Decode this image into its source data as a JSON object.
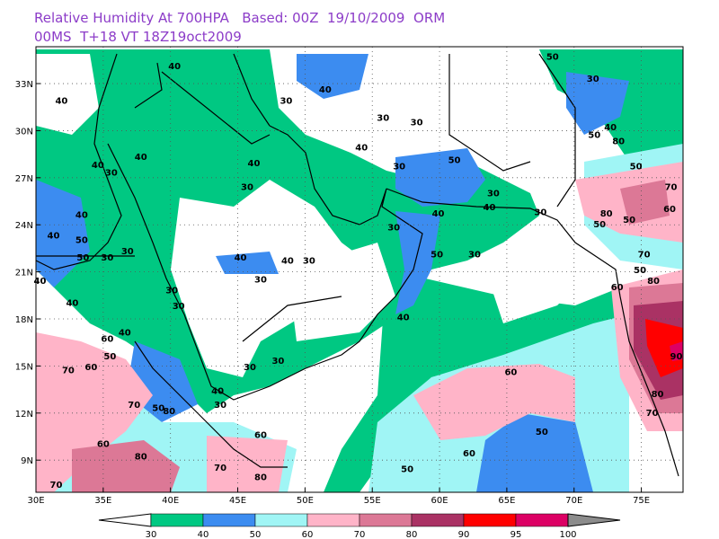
{
  "header": {
    "line1": "Relative Humidity At 700HPA   Based: 00Z  19/10/2009  ORM",
    "line2": "00MS  T+18 VT 18Z19oct2009"
  },
  "map": {
    "lon_range": [
      30,
      78.1
    ],
    "lat_range": [
      6.95,
      35.35
    ],
    "lon_ticks": [
      {
        "value": 30,
        "label": "30E"
      },
      {
        "value": 35,
        "label": "35E"
      },
      {
        "value": 40,
        "label": "40E"
      },
      {
        "value": 45,
        "label": "45E"
      },
      {
        "value": 50,
        "label": "50E"
      },
      {
        "value": 55,
        "label": "55E"
      },
      {
        "value": 60,
        "label": "60E"
      },
      {
        "value": 65,
        "label": "65E"
      },
      {
        "value": 70,
        "label": "70E"
      },
      {
        "value": 75,
        "label": "75E"
      }
    ],
    "lat_ticks": [
      {
        "value": 9,
        "label": "9N"
      },
      {
        "value": 12,
        "label": "12N"
      },
      {
        "value": 15,
        "label": "15N"
      },
      {
        "value": 18,
        "label": "18N"
      },
      {
        "value": 21,
        "label": "21N"
      },
      {
        "value": 24,
        "label": "24N"
      },
      {
        "value": 27,
        "label": "27N"
      },
      {
        "value": 30,
        "label": "30N"
      },
      {
        "value": 33,
        "label": "33N"
      }
    ],
    "grid": true,
    "contour_labels": [
      {
        "value": 40,
        "lon": 40.3,
        "lat": 34.1
      },
      {
        "value": 40,
        "lon": 31.9,
        "lat": 31.9
      },
      {
        "value": 30,
        "lon": 48.6,
        "lat": 31.9
      },
      {
        "value": 40,
        "lon": 51.5,
        "lat": 32.6
      },
      {
        "value": 30,
        "lon": 55.8,
        "lat": 30.8
      },
      {
        "value": 30,
        "lon": 58.3,
        "lat": 30.5
      },
      {
        "value": 50,
        "lon": 68.4,
        "lat": 34.7
      },
      {
        "value": 30,
        "lon": 71.4,
        "lat": 33.3
      },
      {
        "value": 40,
        "lon": 72.7,
        "lat": 30.2
      },
      {
        "value": 50,
        "lon": 71.5,
        "lat": 29.7
      },
      {
        "value": 80,
        "lon": 73.3,
        "lat": 29.3
      },
      {
        "value": 50,
        "lon": 74.6,
        "lat": 27.7
      },
      {
        "value": 40,
        "lon": 54.2,
        "lat": 28.9
      },
      {
        "value": 30,
        "lon": 57.0,
        "lat": 27.7
      },
      {
        "value": 50,
        "lon": 61.1,
        "lat": 28.1
      },
      {
        "value": 40,
        "lon": 37.8,
        "lat": 28.3
      },
      {
        "value": 40,
        "lon": 46.2,
        "lat": 27.9
      },
      {
        "value": 30,
        "lon": 45.7,
        "lat": 26.4
      },
      {
        "value": 40,
        "lon": 34.6,
        "lat": 27.8
      },
      {
        "value": 30,
        "lon": 35.6,
        "lat": 27.3
      },
      {
        "value": 30,
        "lon": 64.0,
        "lat": 26.0
      },
      {
        "value": 40,
        "lon": 63.7,
        "lat": 25.1
      },
      {
        "value": 40,
        "lon": 59.9,
        "lat": 24.7
      },
      {
        "value": 30,
        "lon": 67.5,
        "lat": 24.8
      },
      {
        "value": 70,
        "lon": 77.2,
        "lat": 26.4
      },
      {
        "value": 60,
        "lon": 77.1,
        "lat": 25.0
      },
      {
        "value": 50,
        "lon": 74.1,
        "lat": 24.3
      },
      {
        "value": 80,
        "lon": 72.4,
        "lat": 24.7
      },
      {
        "value": 50,
        "lon": 71.9,
        "lat": 24.0
      },
      {
        "value": 40,
        "lon": 33.4,
        "lat": 24.6
      },
      {
        "value": 40,
        "lon": 31.3,
        "lat": 23.3
      },
      {
        "value": 50,
        "lon": 33.4,
        "lat": 23.0
      },
      {
        "value": 50,
        "lon": 33.5,
        "lat": 21.9
      },
      {
        "value": 30,
        "lon": 35.3,
        "lat": 21.9
      },
      {
        "value": 30,
        "lon": 36.8,
        "lat": 22.3
      },
      {
        "value": 30,
        "lon": 56.6,
        "lat": 23.8
      },
      {
        "value": 50,
        "lon": 59.8,
        "lat": 22.1
      },
      {
        "value": 30,
        "lon": 62.6,
        "lat": 22.1
      },
      {
        "value": 40,
        "lon": 45.2,
        "lat": 21.9
      },
      {
        "value": 40,
        "lon": 48.7,
        "lat": 21.7
      },
      {
        "value": 30,
        "lon": 50.3,
        "lat": 21.7
      },
      {
        "value": 30,
        "lon": 46.7,
        "lat": 20.5
      },
      {
        "value": 30,
        "lon": 40.1,
        "lat": 19.8
      },
      {
        "value": 30,
        "lon": 40.6,
        "lat": 18.8
      },
      {
        "value": 70,
        "lon": 75.2,
        "lat": 22.1
      },
      {
        "value": 50,
        "lon": 74.9,
        "lat": 21.1
      },
      {
        "value": 80,
        "lon": 75.9,
        "lat": 20.4
      },
      {
        "value": 60,
        "lon": 73.2,
        "lat": 20.0
      },
      {
        "value": 40,
        "lon": 30.3,
        "lat": 20.4
      },
      {
        "value": 40,
        "lon": 32.7,
        "lat": 19.0
      },
      {
        "value": 40,
        "lon": 57.3,
        "lat": 18.1
      },
      {
        "value": 60,
        "lon": 35.3,
        "lat": 16.7
      },
      {
        "value": 40,
        "lon": 36.6,
        "lat": 17.1
      },
      {
        "value": 50,
        "lon": 35.5,
        "lat": 15.6
      },
      {
        "value": 60,
        "lon": 34.1,
        "lat": 14.9
      },
      {
        "value": 70,
        "lon": 32.4,
        "lat": 14.7
      },
      {
        "value": 30,
        "lon": 45.9,
        "lat": 14.9
      },
      {
        "value": 30,
        "lon": 48.0,
        "lat": 15.3
      },
      {
        "value": 90,
        "lon": 77.6,
        "lat": 15.6
      },
      {
        "value": 60,
        "lon": 65.3,
        "lat": 14.6
      },
      {
        "value": 40,
        "lon": 43.5,
        "lat": 13.4
      },
      {
        "value": 30,
        "lon": 43.7,
        "lat": 12.5
      },
      {
        "value": 70,
        "lon": 37.3,
        "lat": 12.5
      },
      {
        "value": 50,
        "lon": 39.1,
        "lat": 12.3
      },
      {
        "value": 80,
        "lon": 39.9,
        "lat": 12.1
      },
      {
        "value": 80,
        "lon": 76.2,
        "lat": 13.2
      },
      {
        "value": 70,
        "lon": 75.8,
        "lat": 12.0
      },
      {
        "value": 50,
        "lon": 67.6,
        "lat": 10.8
      },
      {
        "value": 60,
        "lon": 46.7,
        "lat": 10.6
      },
      {
        "value": 60,
        "lon": 35.0,
        "lat": 10.0
      },
      {
        "value": 60,
        "lon": 62.2,
        "lat": 9.4
      },
      {
        "value": 80,
        "lon": 37.8,
        "lat": 9.2
      },
      {
        "value": 70,
        "lon": 43.7,
        "lat": 8.5
      },
      {
        "value": 80,
        "lon": 46.7,
        "lat": 7.9
      },
      {
        "value": 50,
        "lon": 57.6,
        "lat": 8.4
      },
      {
        "value": 70,
        "lon": 31.5,
        "lat": 7.4
      }
    ],
    "colorbar": {
      "levels": [
        30,
        40,
        50,
        60,
        70,
        80,
        90,
        95,
        100
      ],
      "colors": [
        "#ffffff",
        "#00c882",
        "#3c8cf0",
        "#a0f5f5",
        "#ffb4c8",
        "#dc7896",
        "#aa3264",
        "#ff0000",
        "#dc0064",
        "#8c8c8c"
      ]
    }
  }
}
